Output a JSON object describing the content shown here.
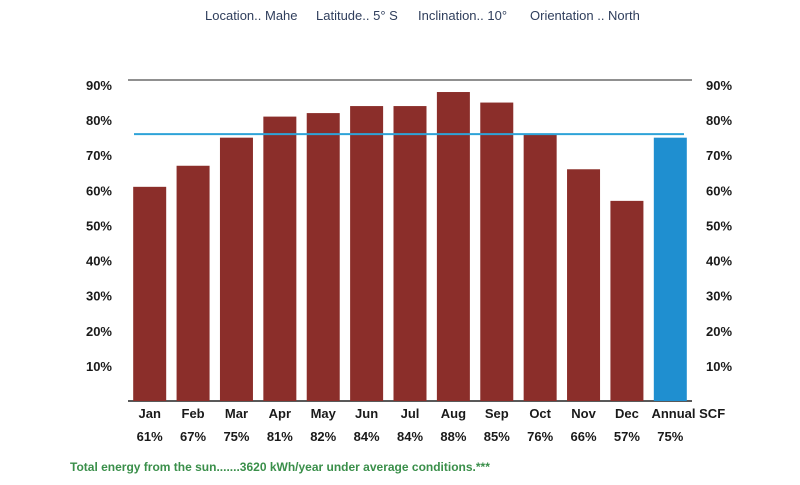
{
  "header": {
    "location": "Location.. Mahe",
    "latitude": "Latitude.. 5° S",
    "inclination": "Inclination.. 10°",
    "orientation": "Orientation .. North"
  },
  "footer": {
    "note": "Total energy from the sun.......3620 kWh/year under average conditions.***"
  },
  "colors": {
    "bar": "#8b2e2a",
    "annual_bar": "#1f8fd0",
    "reference_line": "#2ea3d8",
    "axis": "#222222",
    "header_text": "#2f3e5c",
    "footer_text": "#3a8f4a"
  },
  "chart_data": {
    "type": "bar",
    "categories": [
      "Jan",
      "Feb",
      "Mar",
      "Apr",
      "May",
      "Jun",
      "Jul",
      "Aug",
      "Sep",
      "Oct",
      "Nov",
      "Dec",
      "Annual SCF"
    ],
    "values": [
      61,
      67,
      75,
      81,
      82,
      84,
      84,
      88,
      85,
      76,
      66,
      57,
      75
    ],
    "value_labels": [
      "61%",
      "67%",
      "75%",
      "81%",
      "82%",
      "84%",
      "84%",
      "88%",
      "85%",
      "76%",
      "66%",
      "57%",
      "75%"
    ],
    "highlight_category": "Annual SCF",
    "reference_line_value": 76,
    "y_ticks": [
      10,
      20,
      30,
      40,
      50,
      60,
      70,
      80,
      90
    ],
    "y_tick_labels": [
      "10%",
      "20%",
      "30%",
      "40%",
      "50%",
      "60%",
      "70%",
      "80%",
      "90%"
    ],
    "ylim": [
      0,
      90
    ],
    "right_axis": true,
    "grid": false,
    "title": "",
    "xlabel": "",
    "ylabel": ""
  }
}
